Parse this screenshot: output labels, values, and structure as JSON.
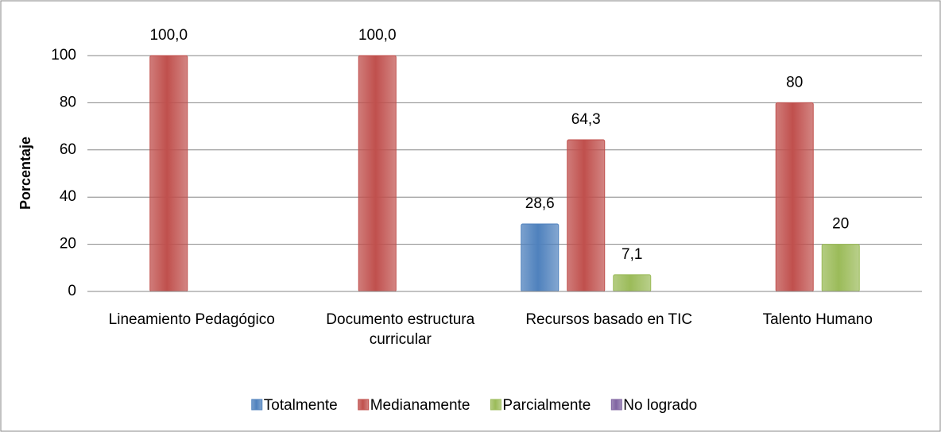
{
  "chart_data": {
    "type": "bar",
    "y_label": "Porcentaje",
    "categories": [
      "Lineamiento Pedagógico",
      "Documento estructura curricular",
      "Recursos basado en TIC",
      "Talento Humano"
    ],
    "series": [
      {
        "name": "Totalmente",
        "color": "#4f81bd",
        "values": [
          null,
          null,
          28.6,
          null
        ],
        "value_labels": [
          null,
          null,
          "28,6",
          null
        ]
      },
      {
        "name": "Medianamente",
        "color": "#c0504d",
        "values": [
          100,
          100,
          64.3,
          80
        ],
        "value_labels": [
          "100,0",
          "100,0",
          "64,3",
          "80"
        ]
      },
      {
        "name": "Parcialmente",
        "color": "#9bbb59",
        "values": [
          null,
          null,
          7.1,
          20
        ],
        "value_labels": [
          null,
          null,
          "7,1",
          "20"
        ]
      },
      {
        "name": "No logrado",
        "color": "#8064a2",
        "values": [
          null,
          null,
          null,
          null
        ],
        "value_labels": [
          null,
          null,
          null,
          null
        ]
      }
    ],
    "ylim": [
      0,
      100
    ],
    "yticks": [
      0,
      20,
      40,
      60,
      80,
      100
    ],
    "grid": true,
    "legend": "bottom"
  }
}
